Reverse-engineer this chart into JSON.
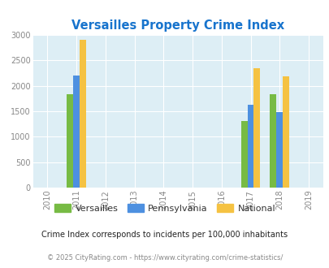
{
  "title": "Versailles Property Crime Index",
  "title_color": "#1874CD",
  "years": [
    2010,
    2011,
    2012,
    2013,
    2014,
    2015,
    2016,
    2017,
    2018,
    2019
  ],
  "bar_width": 0.22,
  "data": {
    "2011": {
      "versailles": 1840,
      "pennsylvania": 2200,
      "national": 2900
    },
    "2017": {
      "versailles": 1300,
      "pennsylvania": 1630,
      "national": 2350
    },
    "2018": {
      "versailles": 1840,
      "pennsylvania": 1490,
      "national": 2190
    }
  },
  "colors": {
    "versailles": "#77bb44",
    "pennsylvania": "#4d90e0",
    "national": "#f5c242"
  },
  "ylim": [
    0,
    3000
  ],
  "yticks": [
    0,
    500,
    1000,
    1500,
    2000,
    2500,
    3000
  ],
  "bg_color": "#ddeef5",
  "legend_labels": [
    "Versailles",
    "Pennsylvania",
    "National"
  ],
  "footnote1": "Crime Index corresponds to incidents per 100,000 inhabitants",
  "footnote2": "© 2025 CityRating.com - https://www.cityrating.com/crime-statistics/",
  "footnote1_color": "#222222",
  "footnote2_color": "#888888"
}
